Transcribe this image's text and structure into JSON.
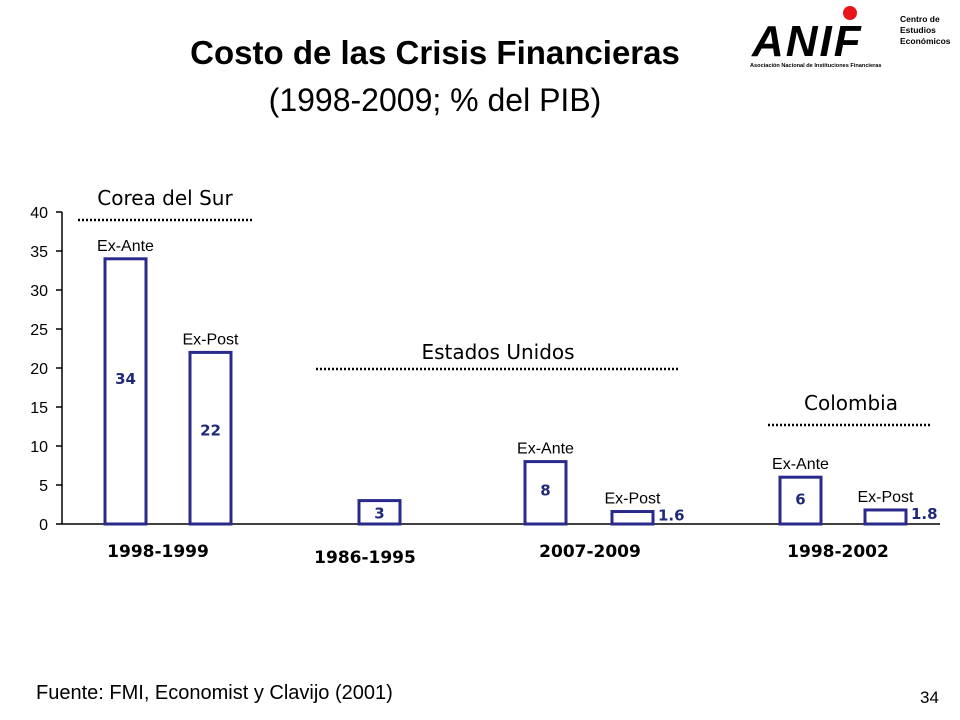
{
  "slide": {
    "title": "Costo de las Crisis Financieras",
    "subtitle": "(1998-2009; % del PIB)",
    "footer": "Fuente: FMI, Economist y Clavijo (2001)",
    "page_number": "34"
  },
  "logo": {
    "brand": "ANIF",
    "tagline": "Asociación Nacional de Instituciones Financieras",
    "side_text": [
      "Centro de",
      "Estudios",
      "Económicos"
    ],
    "dot_color": "#e8161b"
  },
  "chart_data": {
    "type": "bar",
    "ylim": [
      0,
      40
    ],
    "yticks": [
      0,
      5,
      10,
      15,
      20,
      25,
      30,
      35,
      40
    ],
    "bar_color": "#2a2a8c",
    "label_color": "#1f2a7a",
    "groups": [
      {
        "country": "Corea del Sur",
        "period": "1998-1999",
        "bars": [
          {
            "label": "Ex-Ante",
            "value": 34,
            "value_label": "34"
          },
          {
            "label": "Ex-Post",
            "value": 22,
            "value_label": "22"
          }
        ]
      },
      {
        "country": "",
        "period": "1986-1995",
        "bars": [
          {
            "label": "",
            "value": 3,
            "value_label": "3"
          }
        ]
      },
      {
        "country": "Estados Unidos",
        "period": "2007-2009",
        "bars": [
          {
            "label": "Ex-Ante",
            "value": 8,
            "value_label": "8"
          },
          {
            "label": "Ex-Post",
            "value": 1.6,
            "value_label": "1.6"
          }
        ]
      },
      {
        "country": "Colombia",
        "period": "1998-2002",
        "bars": [
          {
            "label": "Ex-Ante",
            "value": 6,
            "value_label": "6"
          },
          {
            "label": "Ex-Post",
            "value": 1.8,
            "value_label": "1.8"
          }
        ]
      }
    ]
  }
}
